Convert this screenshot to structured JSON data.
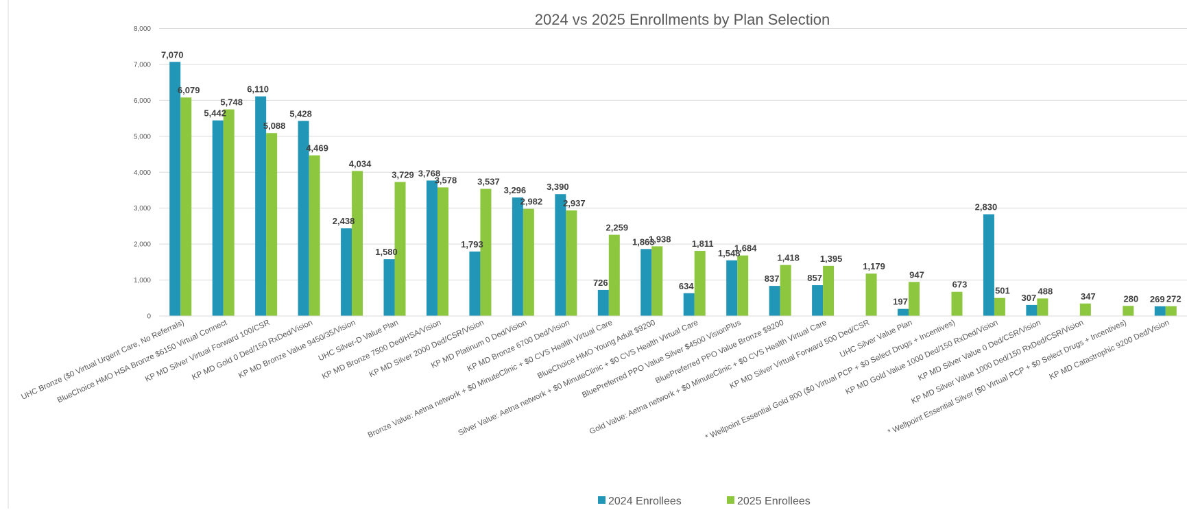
{
  "chart_data": {
    "type": "bar",
    "title": "2024 vs 2025 Enrollments by Plan Selection",
    "xlabel": "",
    "ylabel": "",
    "ylim": [
      0,
      8000
    ],
    "yticks": [
      "0",
      "1,000",
      "2,000",
      "3,000",
      "4,000",
      "5,000",
      "6,000",
      "7,000",
      "8,000"
    ],
    "grid": true,
    "legend_position": "bottom",
    "categories": [
      "UHC Bronze ($0 Virtual Urgent Care, No Referrals)",
      "BlueChoice HMO HSA Bronze $6150 Virtual Connect",
      "KP MD Silver Virtual Forward 100/CSR",
      "KP MD Gold 0 Ded/150 RxDed/Vision",
      "KP MD Bronze Value 9450/35/Vision",
      "UHC Silver-D Value Plan",
      "KP MD Bronze 7500 Ded/HSA/Vision",
      "KP MD Silver 2000 Ded/CSR/Vision",
      "KP MD Platinum 0 Ded/Vision",
      "KP MD Bronze 6700 Ded/Vision",
      "Bronze Value: Aetna network + $0 MinuteClinic + $0 CVS Health Virtual Care",
      "BlueChoice HMO Young Adult $9200",
      "Silver Value: Aetna network + $0 MinuteClinic + $0 CVS Health Virtual Care",
      "BluePreferred PPO Value Silver $4500 VisionPlus",
      "BluePreferred PPO Value Bronze $9200",
      "Gold Value: Aetna network + $0 MinuteClinic + $0 CVS Health Virtual Care",
      "KP MD Silver Virtual Forward 500 Ded/CSR",
      "UHC Silver Value Plan",
      "* Wellpoint Essential Gold 800 ($0 Virtual PCP + $0 Select Drugs + Incentives)",
      "KP MD Gold Value 1000 Ded/150 RxDed/Vision",
      "KP MD Silver Value 0 Ded/CSR/Vision",
      "KP MD Silver Value 1000 Ded/150 RxDed/CSR/Vision",
      "* Wellpoint Essential Silver ($0 Virtual PCP + $0 Select Drugs + Incentives)",
      "KP MD Catastrophic 9200 Ded/Vision"
    ],
    "series": [
      {
        "name": "2024 Enrollees",
        "color": "#2196B6",
        "values": [
          7070,
          5442,
          6110,
          5428,
          2438,
          1580,
          3768,
          1793,
          3296,
          3390,
          726,
          1863,
          634,
          1548,
          837,
          857,
          null,
          197,
          null,
          2830,
          307,
          null,
          null,
          269
        ],
        "labels": [
          "7,070",
          "5,442",
          "6,110",
          "5,428",
          "2,438",
          "1,580",
          "3,768",
          "1,793",
          "3,296",
          "3,390",
          "726",
          "1,863",
          "634",
          "1,548",
          "837",
          "857",
          "",
          "197",
          "",
          "2,830",
          "307",
          "",
          "",
          "269"
        ]
      },
      {
        "name": "2025 Enrollees",
        "color": "#8DC63F",
        "values": [
          6079,
          5748,
          5088,
          4469,
          4034,
          3729,
          3578,
          3537,
          2982,
          2937,
          2259,
          1938,
          1811,
          1684,
          1418,
          1395,
          1179,
          947,
          673,
          501,
          488,
          347,
          280,
          272
        ],
        "labels": [
          "6,079",
          "5,748",
          "5,088",
          "4,469",
          "4,034",
          "3,729",
          "3,578",
          "3,537",
          "2,982",
          "2,937",
          "2,259",
          "1,938",
          "1,811",
          "1,684",
          "1,418",
          "1,395",
          "1,179",
          "947",
          "673",
          "501",
          "488",
          "347",
          "280",
          "272"
        ]
      }
    ]
  }
}
